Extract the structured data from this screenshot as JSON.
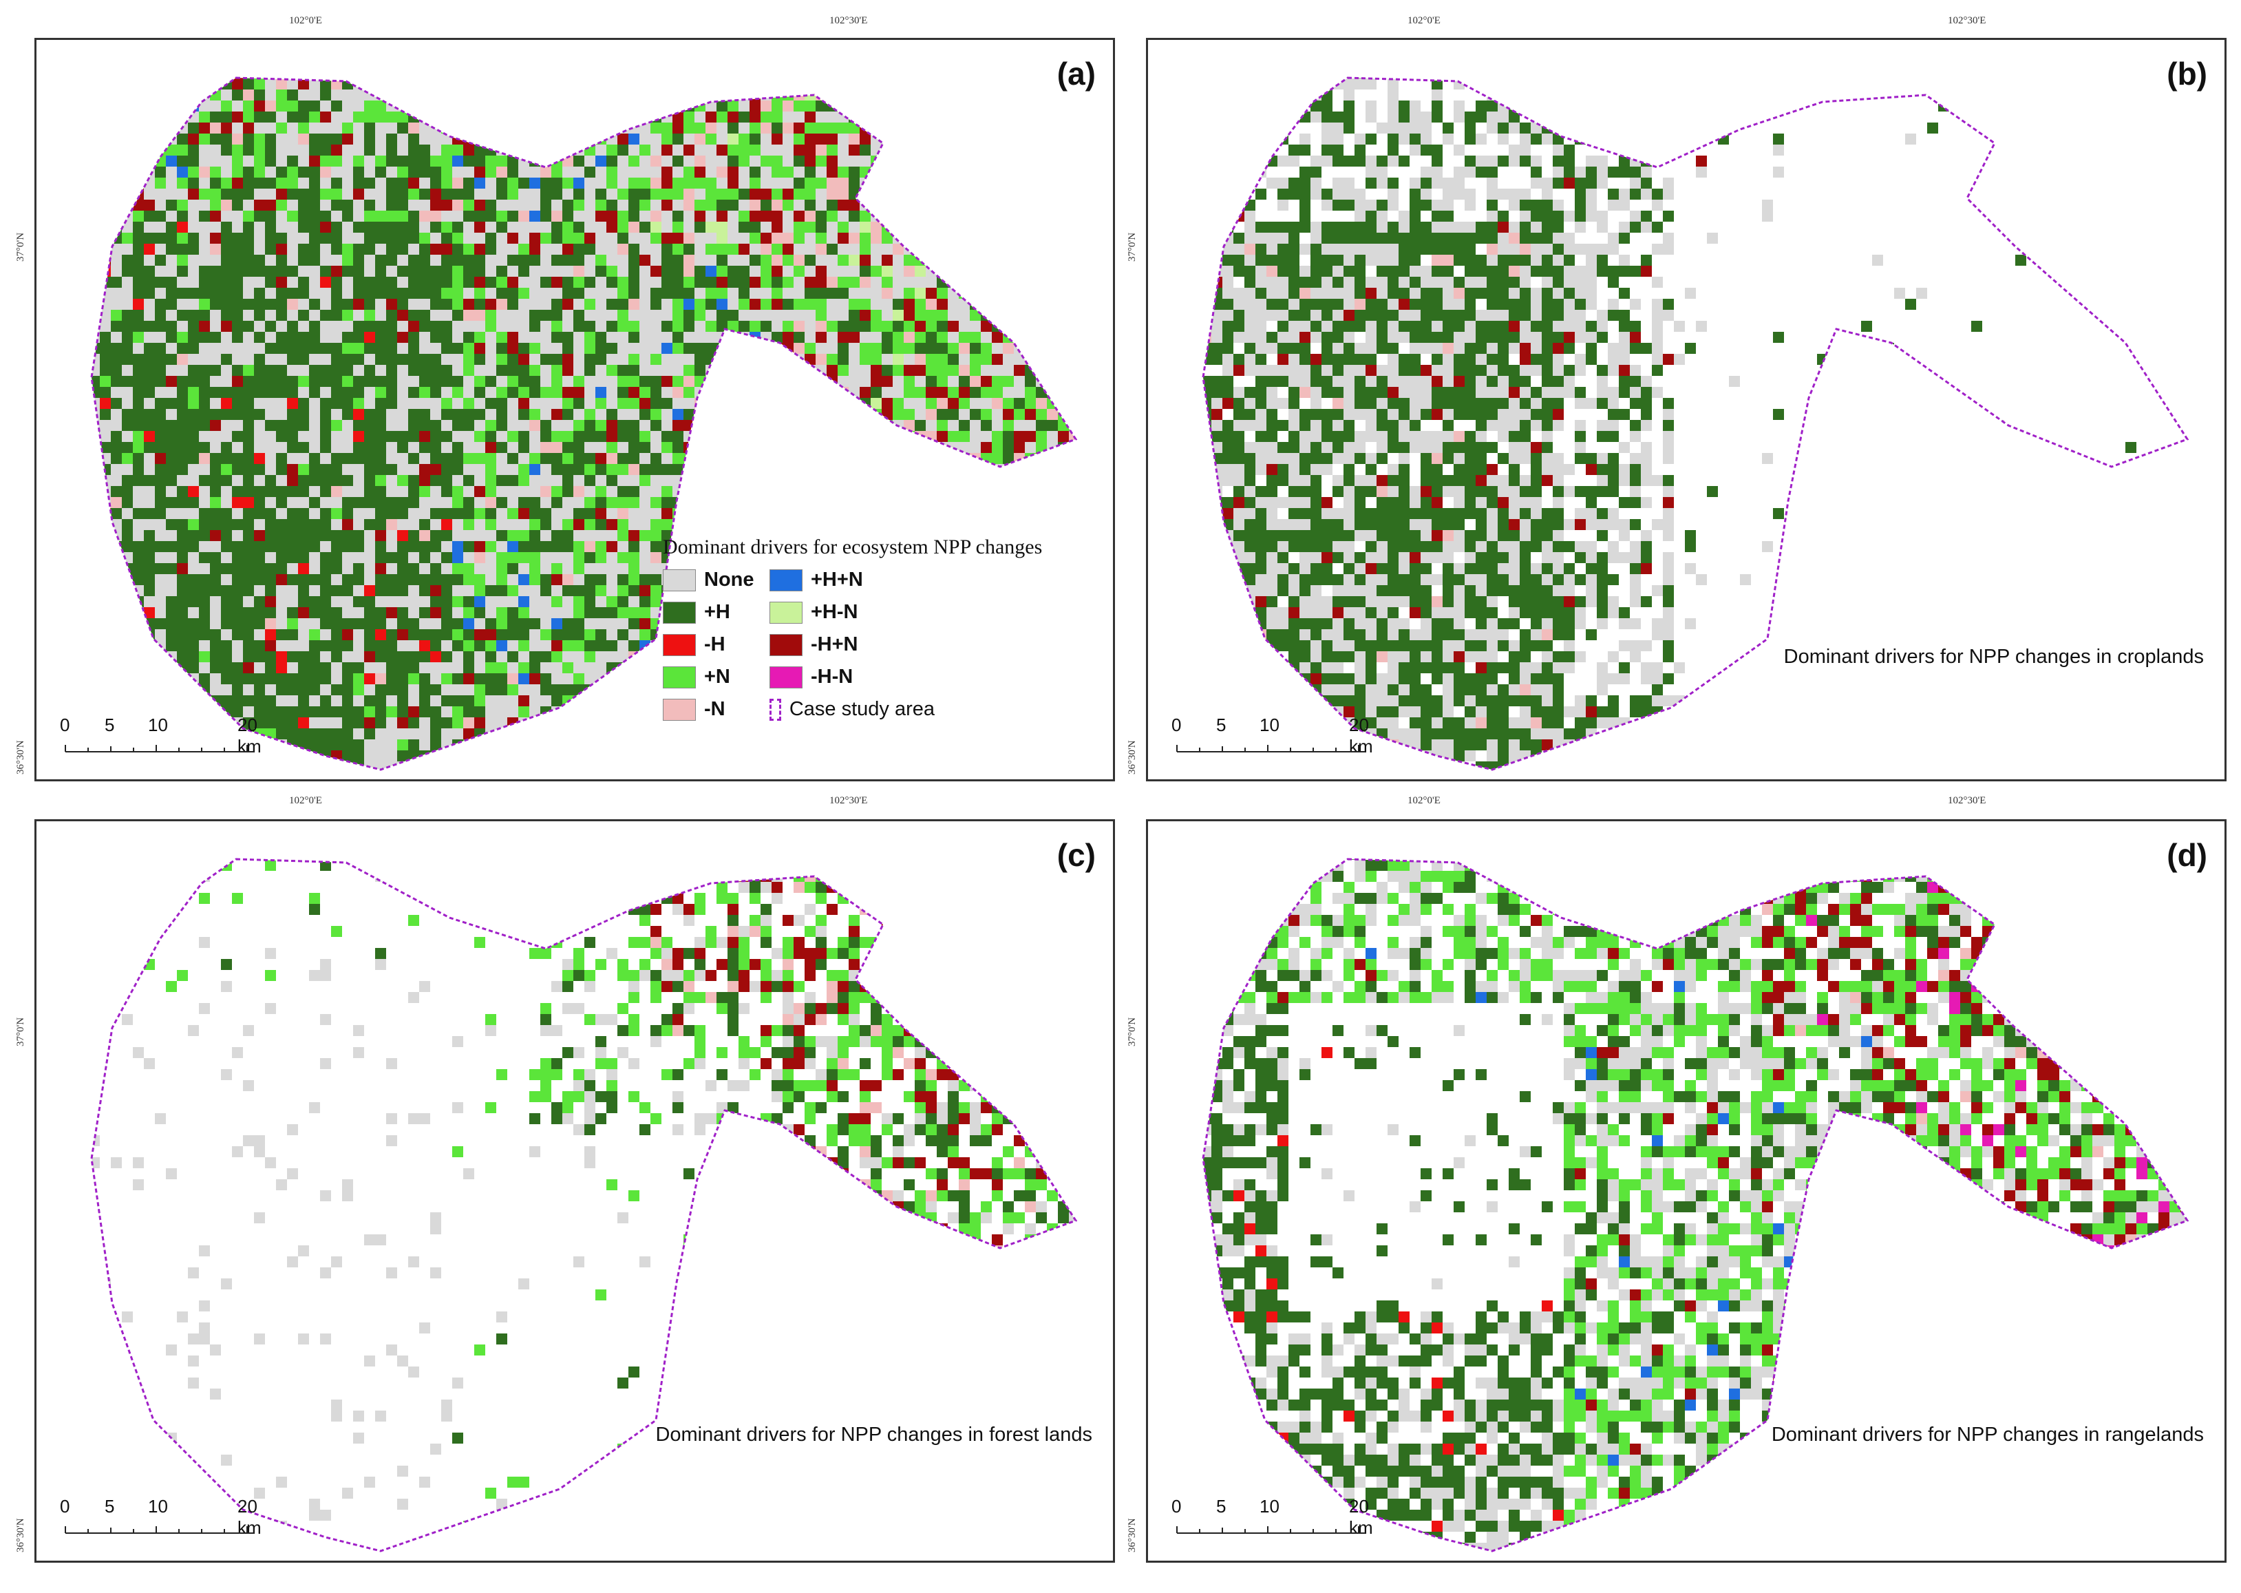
{
  "colors": {
    "none": "#d9d9d9",
    "pos_h": "#2f6e1f",
    "neg_h": "#ee1111",
    "pos_n": "#5be53a",
    "neg_n": "#f2bcbc",
    "pos_h_pos_n": "#1f6fe0",
    "pos_h_neg_n": "#c9f29a",
    "neg_h_pos_n": "#a10b0b",
    "neg_h_neg_n": "#e61ab4",
    "boundary": "#a020c8"
  },
  "coordinates": {
    "lon_a": "102°0'E",
    "lon_b": "102°30'E",
    "lat_top": "37°0'N",
    "lat_bottom": "36°30'N"
  },
  "scalebar": {
    "ticks": [
      "0",
      "5",
      "10",
      "20 km"
    ]
  },
  "legend": {
    "title": "Dominant drivers for ecosystem NPP changes",
    "items": [
      {
        "label": "None",
        "color_key": "none"
      },
      {
        "label": "+H+N",
        "color_key": "pos_h_pos_n"
      },
      {
        "label": "+H",
        "color_key": "pos_h"
      },
      {
        "label": "+H-N",
        "color_key": "pos_h_neg_n"
      },
      {
        "label": "-H",
        "color_key": "neg_h"
      },
      {
        "label": "-H+N",
        "color_key": "neg_h_pos_n"
      },
      {
        "label": "+N",
        "color_key": "pos_n"
      },
      {
        "label": "-H-N",
        "color_key": "neg_h_neg_n"
      },
      {
        "label": "-N",
        "color_key": "neg_n"
      },
      {
        "label": "Case study area",
        "color_key": "boundary"
      }
    ]
  },
  "panels": [
    {
      "label": "(a)",
      "subtitle": ""
    },
    {
      "label": "(b)",
      "subtitle": "Dominant drivers for NPP changes in croplands"
    },
    {
      "label": "(c)",
      "subtitle": "Dominant drivers for NPP changes in forest lands"
    },
    {
      "label": "(d)",
      "subtitle": "Dominant drivers for NPP changes in rangelands"
    }
  ]
}
